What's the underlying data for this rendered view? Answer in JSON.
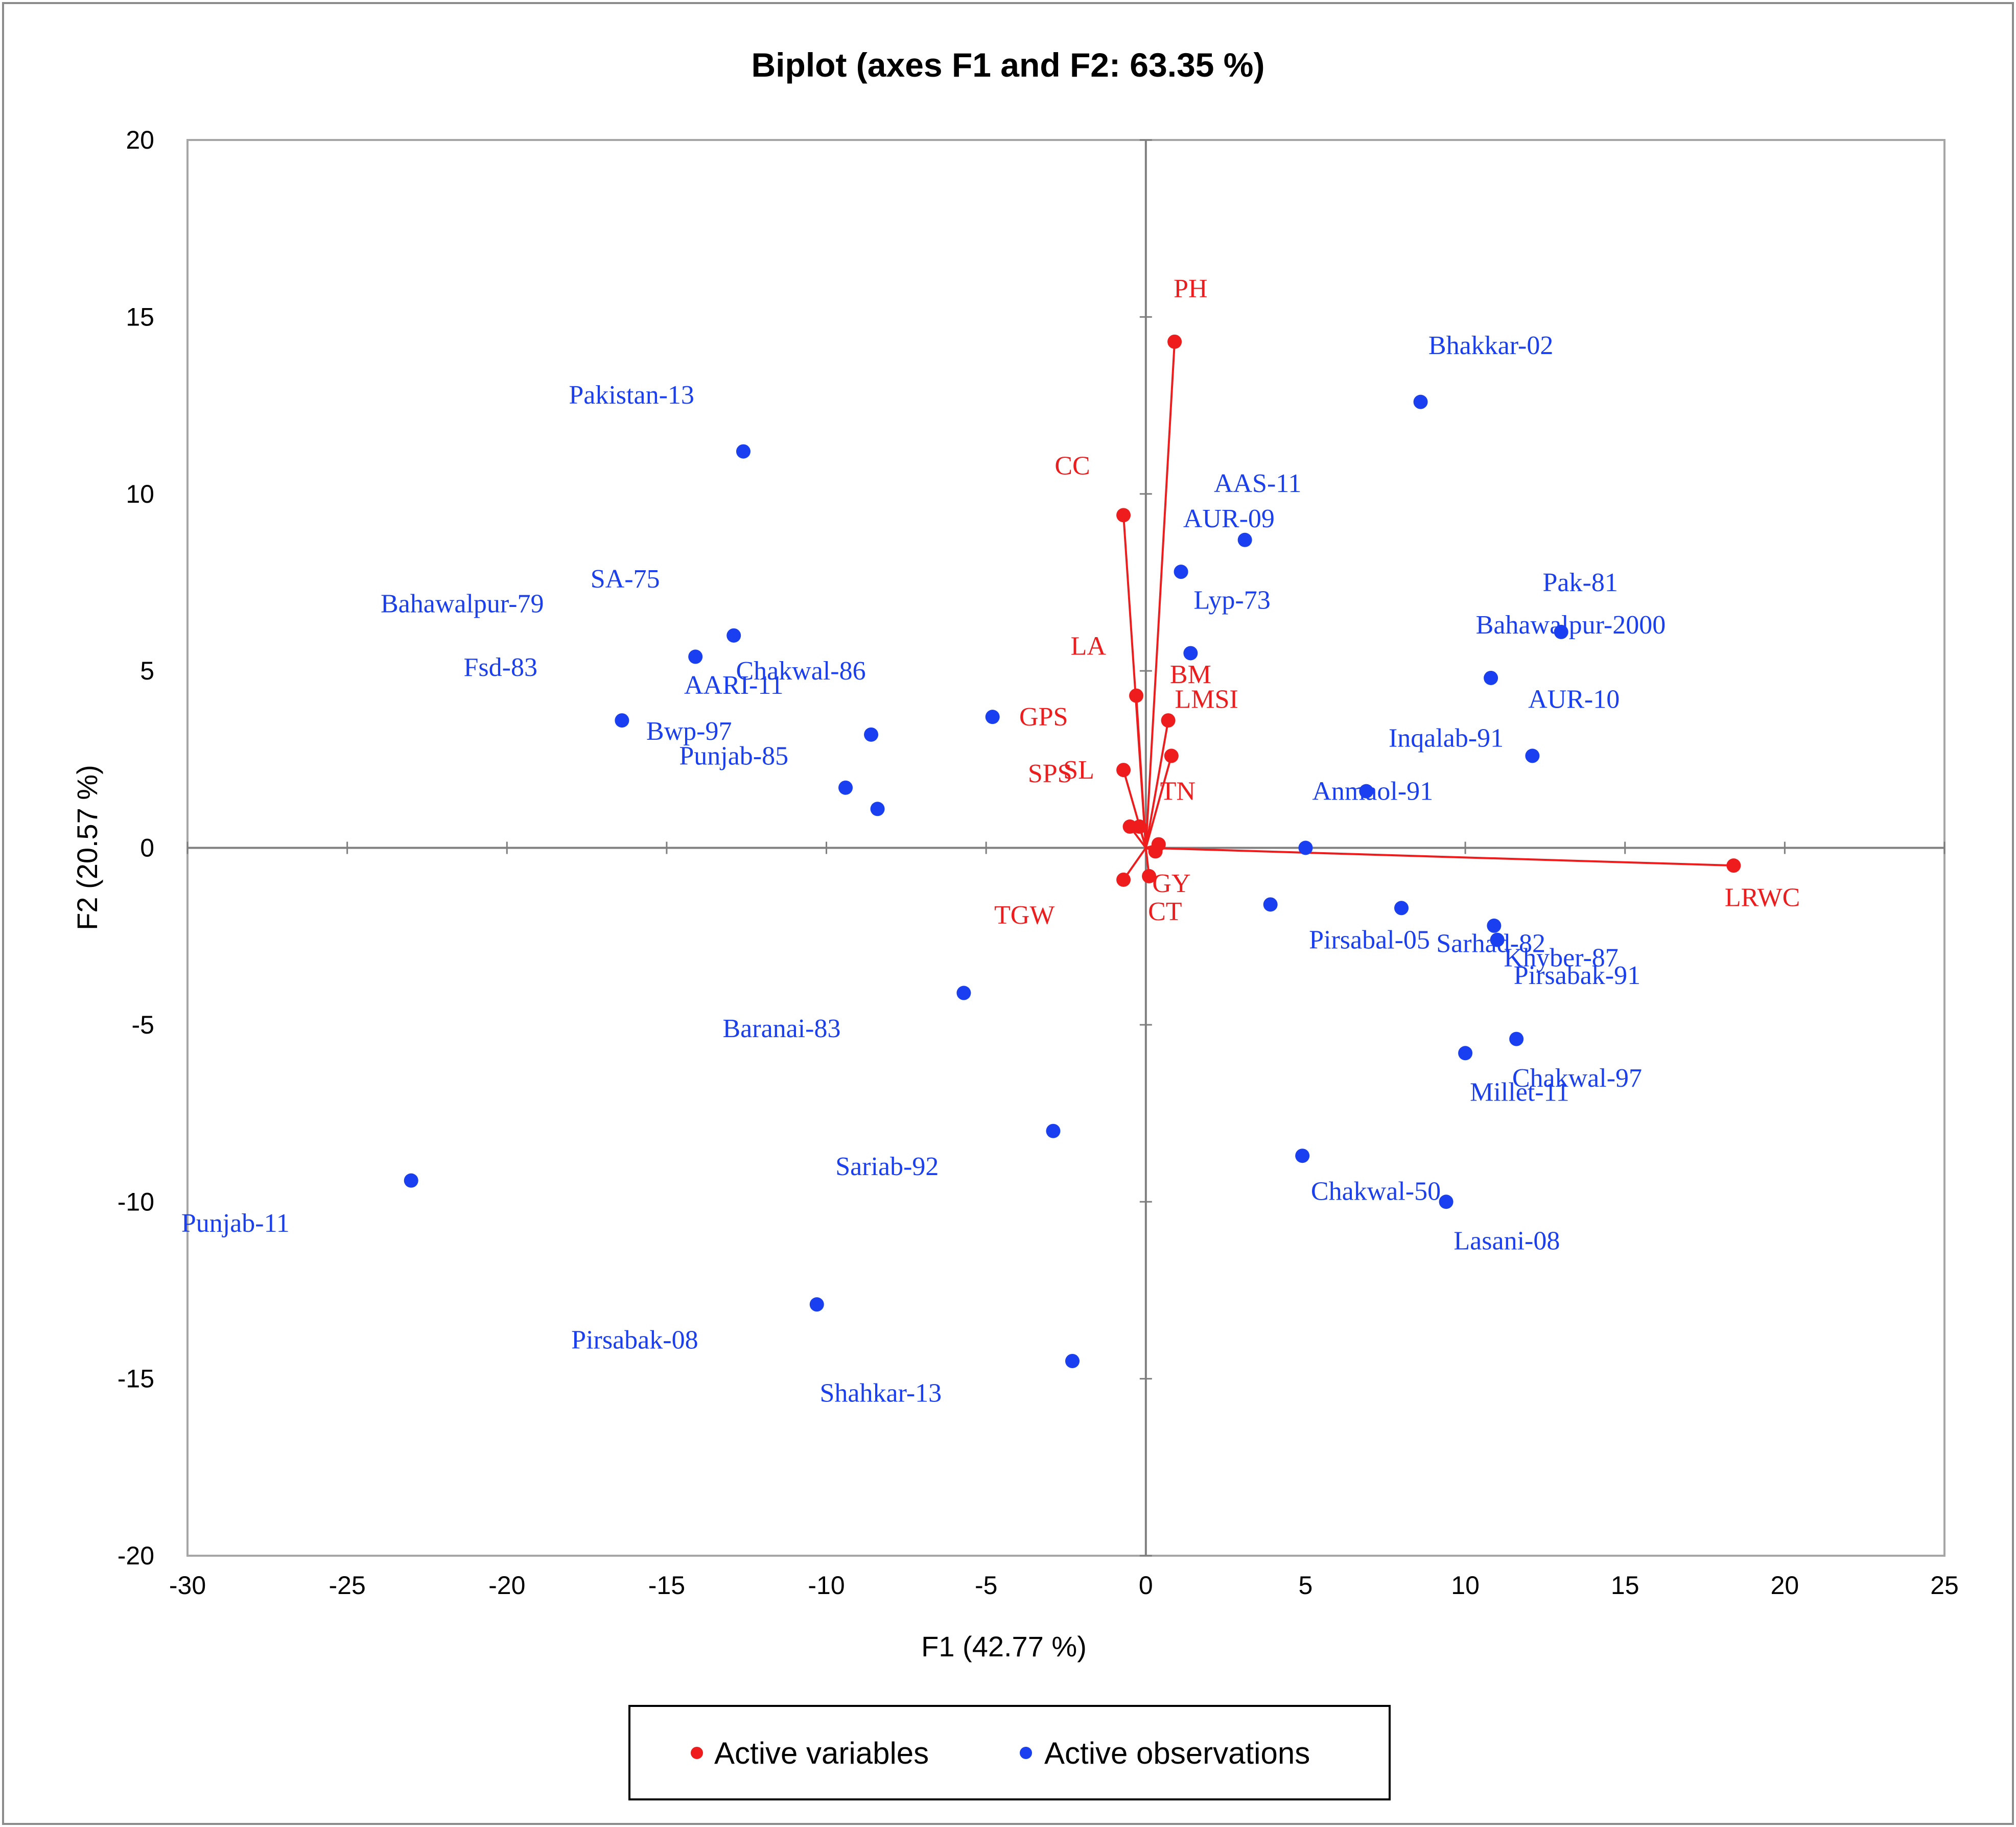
{
  "chart_data": {
    "type": "scatter",
    "title": "Biplot (axes F1 and F2: 63.35 %)",
    "xlabel": "F1 (42.77 %)",
    "ylabel": "F2 (20.57 %)",
    "xlim": [
      -30,
      25
    ],
    "ylim": [
      -20,
      20
    ],
    "xticks": [
      -30,
      -25,
      -20,
      -15,
      -10,
      -5,
      0,
      5,
      10,
      15,
      20,
      25
    ],
    "yticks": [
      -20,
      -15,
      -10,
      -5,
      0,
      5,
      10,
      15,
      20
    ],
    "grid": false,
    "legend_position": "bottom",
    "colors": {
      "variables": "#ee1c1c",
      "observations": "#1a3ff0",
      "axis": "#7f7f7f",
      "frame": "#a6a6a6"
    },
    "series": [
      {
        "name": "Active variables",
        "points": [
          {
            "label": "PH",
            "x": 0.9,
            "y": 14.3,
            "lx": 1.4,
            "ly": 15.8
          },
          {
            "label": "CC",
            "x": -0.7,
            "y": 9.4,
            "lx": -2.3,
            "ly": 10.8
          },
          {
            "label": "LA",
            "x": -0.3,
            "y": 4.3,
            "lx": -1.8,
            "ly": 5.7
          },
          {
            "label": "BM",
            "x": 0.7,
            "y": 3.6,
            "lx": 1.4,
            "ly": 4.9
          },
          {
            "label": "LMSI",
            "x": 0.8,
            "y": 2.6,
            "lx": 1.9,
            "ly": 4.2
          },
          {
            "label": "GPS",
            "x": -0.7,
            "y": 2.2,
            "lx": -3.2,
            "ly": 3.7
          },
          {
            "label": "SL",
            "x": -0.5,
            "y": 0.6,
            "lx": -2.1,
            "ly": 2.2
          },
          {
            "label": "SPS",
            "x": -0.2,
            "y": 0.6,
            "lx": -3.0,
            "ly": 2.1
          },
          {
            "label": "TN",
            "x": 0.4,
            "y": 0.1,
            "lx": 1.0,
            "ly": 1.6
          },
          {
            "label": "GY",
            "x": 0.3,
            "y": -0.1,
            "lx": 0.8,
            "ly": -1.0
          },
          {
            "label": "CT",
            "x": 0.1,
            "y": -0.8,
            "lx": 0.6,
            "ly": -1.8
          },
          {
            "label": "TGW",
            "x": -0.7,
            "y": -0.9,
            "lx": -3.8,
            "ly": -1.9
          },
          {
            "label": "LRWC",
            "x": 18.4,
            "y": -0.5,
            "lx": 19.3,
            "ly": -1.4
          }
        ]
      },
      {
        "name": "Active observations",
        "points": [
          {
            "label": "Bhakkar-02",
            "x": 8.6,
            "y": 12.6,
            "lx": 10.8,
            "ly": 14.2
          },
          {
            "label": "Pakistan-13",
            "x": -12.6,
            "y": 11.2,
            "lx": -16.1,
            "ly": 12.8
          },
          {
            "label": "AAS-11",
            "x": 3.1,
            "y": 8.7,
            "lx": 3.5,
            "ly": 10.3
          },
          {
            "label": "AUR-09",
            "x": 1.1,
            "y": 7.8,
            "lx": 2.6,
            "ly": 9.3
          },
          {
            "label": "Lyp-73",
            "x": 1.4,
            "y": 5.5,
            "lx": 2.7,
            "ly": 7.0
          },
          {
            "label": "Pak-81",
            "x": 13.0,
            "y": 6.1,
            "lx": 13.6,
            "ly": 7.5
          },
          {
            "label": "Bahawalpur-2000",
            "x": 10.8,
            "y": 4.8,
            "lx": 13.3,
            "ly": 6.3
          },
          {
            "label": "AUR-10",
            "x": 12.1,
            "y": 2.6,
            "lx": 13.4,
            "ly": 4.2
          },
          {
            "label": "Inqalab-91",
            "x": 6.9,
            "y": 1.6,
            "lx": 9.4,
            "ly": 3.1
          },
          {
            "label": "Anmaol-91",
            "x": 5.0,
            "y": 0.0,
            "lx": 7.1,
            "ly": 1.6
          },
          {
            "label": "SA-75",
            "x": -12.9,
            "y": 6.0,
            "lx": -16.3,
            "ly": 7.6
          },
          {
            "label": "Bahawalpur-79",
            "x": -14.1,
            "y": 5.4,
            "lx": -21.4,
            "ly": 6.9
          },
          {
            "label": "Chakwal-86",
            "x": -8.6,
            "y": 3.2,
            "lx": -10.8,
            "ly": 5.0
          },
          {
            "label": "AARI-11",
            "x": -9.4,
            "y": 1.7,
            "lx": -12.9,
            "ly": 4.6
          },
          {
            "label": "Fsd-83",
            "x": -16.4,
            "y": 3.6,
            "lx": -20.2,
            "ly": 5.1
          },
          {
            "label": "Bwp-97",
            "x": -8.4,
            "y": 1.1,
            "lx": -14.3,
            "ly": 3.3
          },
          {
            "label": "Punjab-85",
            "x": -4.8,
            "y": 3.7,
            "lx": -12.9,
            "ly": 2.6
          },
          {
            "label": "Pirsabal-05",
            "x": 3.9,
            "y": -1.6,
            "lx": 7.0,
            "ly": -2.6
          },
          {
            "label": "Sarhad-82",
            "x": 8.0,
            "y": -1.7,
            "lx": 10.8,
            "ly": -2.7
          },
          {
            "label": "Khyber-87",
            "x": 10.9,
            "y": -2.2,
            "lx": 13.0,
            "ly": -3.1
          },
          {
            "label": "Pirsabak-91",
            "x": 11.0,
            "y": -2.6,
            "lx": 13.5,
            "ly": -3.6
          },
          {
            "label": "Baranai-83",
            "x": -5.7,
            "y": -4.1,
            "lx": -11.4,
            "ly": -5.1
          },
          {
            "label": "Chakwal-97",
            "x": 11.6,
            "y": -5.4,
            "lx": 13.5,
            "ly": -6.5
          },
          {
            "label": "Millet-11",
            "x": 10.0,
            "y": -5.8,
            "lx": 11.7,
            "ly": -6.9
          },
          {
            "label": "Sariab-92",
            "x": -2.9,
            "y": -8.0,
            "lx": -8.1,
            "ly": -9.0
          },
          {
            "label": "Chakwal-50",
            "x": 4.9,
            "y": -8.7,
            "lx": 7.2,
            "ly": -9.7
          },
          {
            "label": "Lasani-08",
            "x": 9.4,
            "y": -10.0,
            "lx": 11.3,
            "ly": -11.1
          },
          {
            "label": "Punjab-11",
            "x": -23.0,
            "y": -9.4,
            "lx": -28.5,
            "ly": -10.6
          },
          {
            "label": "Pirsabak-08",
            "x": -10.3,
            "y": -12.9,
            "lx": -16.0,
            "ly": -13.9
          },
          {
            "label": "Shahkar-13",
            "x": -2.3,
            "y": -14.5,
            "lx": -8.3,
            "ly": -15.4
          }
        ]
      }
    ]
  }
}
